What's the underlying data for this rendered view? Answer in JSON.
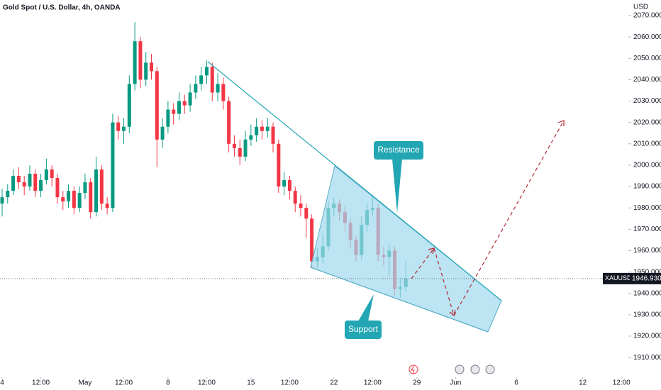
{
  "chart_data": {
    "type": "candlestick",
    "title": "Gold Spot / U.S. Dollar, 4h, OANDA",
    "currency": "USD",
    "x": [
      0,
      1,
      2,
      3,
      4,
      5,
      6,
      7,
      8,
      9,
      10,
      11,
      12,
      13,
      14,
      15,
      16,
      17,
      18,
      19,
      20,
      21,
      22,
      23,
      24,
      25,
      26,
      27,
      28,
      29,
      30,
      31,
      32,
      33,
      34,
      35,
      36,
      37,
      38,
      39,
      40,
      41,
      42,
      43,
      44,
      45,
      46,
      47,
      48,
      49,
      50,
      51,
      52,
      53,
      54,
      55,
      56,
      57,
      58,
      59,
      60,
      61,
      62,
      63,
      64,
      65,
      66,
      67,
      68,
      69,
      70,
      71,
      72,
      73
    ],
    "open": [
      1982,
      1985,
      1988,
      1995,
      1992,
      1990,
      1996,
      1988,
      1993,
      1998,
      1994,
      1985,
      1983,
      1988,
      1980,
      1987,
      1992,
      1978,
      1998,
      1982,
      1980,
      2020,
      2016,
      2018,
      2038,
      2058,
      2040,
      2048,
      2044,
      2012,
      2018,
      2026,
      2024,
      2030,
      2028,
      2034,
      2038,
      2042,
      2046,
      2034,
      2038,
      2030,
      2010,
      2008,
      2004,
      2012,
      2014,
      2018,
      2016,
      2018,
      2010,
      1990,
      1993,
      1988,
      1982,
      1980,
      1975,
      1955,
      1957,
      1962,
      1980,
      1982,
      1978,
      1973,
      1965,
      1958,
      1972,
      1979,
      1980,
      1958,
      1957,
      1960,
      1942,
      1943
    ],
    "high": [
      1989,
      1991,
      1998,
      1999,
      1995,
      2000,
      1998,
      1996,
      2003,
      2000,
      1996,
      1988,
      1991,
      1990,
      1990,
      1996,
      1994,
      2004,
      2000,
      1985,
      2024,
      2023,
      2022,
      2042,
      2067,
      2060,
      2053,
      2052,
      2046,
      2022,
      2030,
      2029,
      2034,
      2033,
      2038,
      2042,
      2046,
      2049,
      2048,
      2043,
      2041,
      2032,
      2014,
      2012,
      2016,
      2019,
      2022,
      2021,
      2022,
      2020,
      2012,
      1997,
      1995,
      1990,
      1986,
      1982,
      1977,
      1961,
      1968,
      1983,
      1985,
      1984,
      1981,
      1975,
      1967,
      1976,
      1982,
      1986,
      1982,
      1962,
      1963,
      1962,
      1947,
      1955
    ],
    "low": [
      1976,
      1982,
      1986,
      1989,
      1986,
      1988,
      1985,
      1985,
      1991,
      1990,
      1982,
      1979,
      1980,
      1977,
      1978,
      1984,
      1975,
      1976,
      1979,
      1977,
      1978,
      2012,
      2010,
      2015,
      2035,
      2036,
      2037,
      2040,
      1999,
      2008,
      2015,
      2019,
      2021,
      2024,
      2025,
      2031,
      2035,
      2038,
      2030,
      2030,
      2026,
      2006,
      2004,
      2000,
      2002,
      2009,
      2011,
      2012,
      2013,
      2006,
      1987,
      1986,
      1984,
      1978,
      1976,
      1966,
      1952,
      1952,
      1954,
      1960,
      1976,
      1974,
      1969,
      1961,
      1955,
      1956,
      1969,
      1976,
      1955,
      1953,
      1948,
      1939,
      1938,
      1941
    ],
    "close": [
      1985,
      1988,
      1995,
      1992,
      1990,
      1996,
      1988,
      1993,
      1998,
      1994,
      1985,
      1983,
      1988,
      1980,
      1987,
      1992,
      1978,
      1998,
      1982,
      1980,
      2020,
      2016,
      2018,
      2038,
      2058,
      2040,
      2048,
      2044,
      2012,
      2018,
      2026,
      2024,
      2030,
      2028,
      2034,
      2038,
      2042,
      2046,
      2034,
      2038,
      2030,
      2010,
      2008,
      2004,
      2012,
      2014,
      2018,
      2016,
      2018,
      2010,
      1990,
      1993,
      1988,
      1982,
      1980,
      1975,
      1955,
      1957,
      1962,
      1980,
      1982,
      1978,
      1973,
      1965,
      1958,
      1972,
      1979,
      1980,
      1958,
      1957,
      1960,
      1942,
      1943,
      1946.93
    ],
    "up_color": "#089981",
    "down_color": "#f23645",
    "xlim": [
      0,
      113
    ],
    "xticks": [
      {
        "value": 0,
        "label": "4"
      },
      {
        "value": 7,
        "label": "12:00"
      },
      {
        "value": 15,
        "label": "May"
      },
      {
        "value": 22,
        "label": "12:00"
      },
      {
        "value": 30,
        "label": "8"
      },
      {
        "value": 37,
        "label": "12:00"
      },
      {
        "value": 45,
        "label": "15"
      },
      {
        "value": 52,
        "label": "12:00"
      },
      {
        "value": 60,
        "label": "22"
      },
      {
        "value": 67,
        "label": "12:00"
      },
      {
        "value": 75,
        "label": "29"
      },
      {
        "value": 82,
        "label": "Jun"
      },
      {
        "value": 93,
        "label": "6"
      },
      {
        "value": 105,
        "label": "12"
      },
      {
        "value": 112,
        "label": "12:00"
      }
    ],
    "ylim": [
      1906.4,
      2077.3
    ],
    "yticks": [
      {
        "value": 1910,
        "label": "1910.000"
      },
      {
        "value": 1920,
        "label": "1920.000"
      },
      {
        "value": 1930,
        "label": "1930.000"
      },
      {
        "value": 1940,
        "label": "1940.000"
      },
      {
        "value": 1950,
        "label": "1950.000"
      },
      {
        "value": 1960,
        "label": "1960.000"
      },
      {
        "value": 1970,
        "label": "1970.000"
      },
      {
        "value": 1980,
        "label": "1980.000"
      },
      {
        "value": 1990,
        "label": "1990.000"
      },
      {
        "value": 2000,
        "label": "2000.000"
      },
      {
        "value": 2010,
        "label": "2010.000"
      },
      {
        "value": 2020,
        "label": "2020.000"
      },
      {
        "value": 2030,
        "label": "2030.000"
      },
      {
        "value": 2040,
        "label": "2040.000"
      },
      {
        "value": 2050,
        "label": "2050.000"
      },
      {
        "value": 2060,
        "label": "2060.000"
      },
      {
        "value": 2070,
        "label": "2070.000"
      }
    ],
    "last_price": {
      "symbol": "XAUUSD",
      "value": 1946.93,
      "label": "1946.930"
    },
    "annotations": [
      "Resistance",
      "Support"
    ]
  }
}
